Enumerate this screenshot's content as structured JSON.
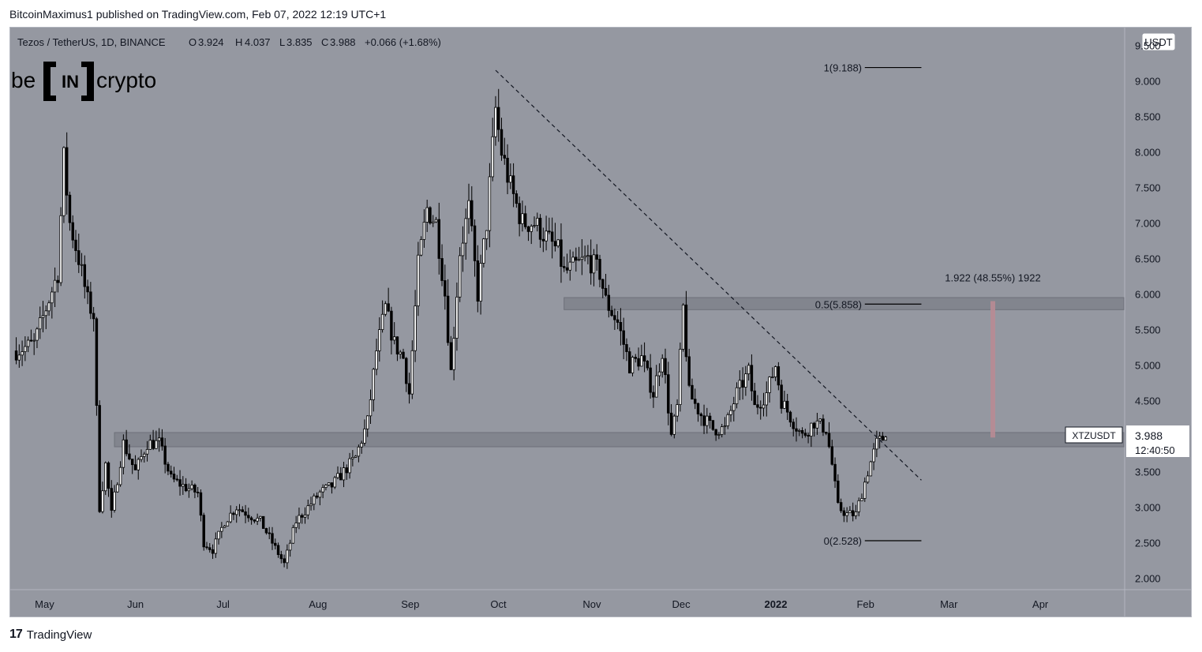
{
  "header": {
    "publisher_line": "BitcoinMaximus1 published on TradingView.com, Feb 07, 2022 12:19 UTC+1"
  },
  "footer": {
    "brand": "TradingView",
    "logo_glyph": "17"
  },
  "watermark": {
    "pre": "be",
    "mid": "IN",
    "post": "crypto"
  },
  "legend": {
    "symbol": "Tezos / TetherUS, 1D, BINANCE",
    "o_label": "O",
    "o_value": "3.924",
    "h_label": "H",
    "h_value": "4.037",
    "l_label": "L",
    "l_value": "3.835",
    "c_label": "C",
    "c_value": "3.988",
    "change": "+0.066 (+1.68%)"
  },
  "price_scale": {
    "currency": "USDT",
    "ticks": [
      "9.500",
      "9.000",
      "8.500",
      "8.000",
      "7.500",
      "7.000",
      "6.500",
      "6.000",
      "5.500",
      "5.000",
      "4.500",
      "3.500",
      "3.000",
      "2.500",
      "2.000"
    ],
    "tick_values": [
      9.5,
      9.0,
      8.5,
      8.0,
      7.5,
      7.0,
      6.5,
      6.0,
      5.5,
      5.0,
      4.5,
      3.5,
      3.0,
      2.5,
      2.0
    ],
    "last_price_label": "XTZUSDT",
    "last_price": "3.988",
    "countdown": "12:40:50"
  },
  "time_scale": {
    "labels": [
      "May",
      "Jun",
      "Jul",
      "Aug",
      "Sep",
      "Oct",
      "Nov",
      "Dec",
      "2022",
      "Feb",
      "Mar",
      "Apr"
    ],
    "label_day_index": [
      0,
      31,
      61,
      92,
      123,
      153,
      184,
      214,
      245,
      276,
      304,
      335
    ]
  },
  "fib": {
    "level_1": "1(9.188)",
    "level_05": "0.5(5.858)",
    "level_0": "0(2.528)"
  },
  "measure_label": "1.922 (48.55%) 1922",
  "colors": {
    "background": "#9598a1",
    "candle": "#000000",
    "zone": "#7c7f88",
    "measure": "#b88b93",
    "axis_text": "#131722"
  },
  "chart_data": {
    "type": "candlestick",
    "symbol": "XTZUSDT",
    "timeframe": "1D",
    "exchange": "BINANCE",
    "ylim": [
      1.85,
      9.75
    ],
    "xlim_days": [
      -8,
      366
    ],
    "x_start_date": "2021-05-01",
    "last_close": 3.988,
    "keypoints": [
      {
        "day": -6,
        "price": 5.2
      },
      {
        "day": 0,
        "price": 5.3
      },
      {
        "day": 8,
        "price": 6.3
      },
      {
        "day": 10,
        "price": 7.9
      },
      {
        "day": 12,
        "price": 7.0
      },
      {
        "day": 15,
        "price": 6.5
      },
      {
        "day": 18,
        "price": 5.9
      },
      {
        "day": 20,
        "price": 5.7
      },
      {
        "day": 22,
        "price": 3.0
      },
      {
        "day": 24,
        "price": 3.6
      },
      {
        "day": 26,
        "price": 2.9
      },
      {
        "day": 30,
        "price": 3.9
      },
      {
        "day": 34,
        "price": 3.5
      },
      {
        "day": 38,
        "price": 3.9
      },
      {
        "day": 42,
        "price": 3.9
      },
      {
        "day": 46,
        "price": 3.4
      },
      {
        "day": 50,
        "price": 3.3
      },
      {
        "day": 55,
        "price": 3.2
      },
      {
        "day": 57,
        "price": 2.5
      },
      {
        "day": 60,
        "price": 2.4
      },
      {
        "day": 64,
        "price": 2.8
      },
      {
        "day": 68,
        "price": 3.0
      },
      {
        "day": 72,
        "price": 2.9
      },
      {
        "day": 76,
        "price": 2.8
      },
      {
        "day": 80,
        "price": 2.5
      },
      {
        "day": 84,
        "price": 2.2
      },
      {
        "day": 88,
        "price": 2.8
      },
      {
        "day": 92,
        "price": 3.0
      },
      {
        "day": 96,
        "price": 3.2
      },
      {
        "day": 100,
        "price": 3.3
      },
      {
        "day": 104,
        "price": 3.5
      },
      {
        "day": 108,
        "price": 3.7
      },
      {
        "day": 112,
        "price": 4.2
      },
      {
        "day": 115,
        "price": 5.2
      },
      {
        "day": 118,
        "price": 5.8
      },
      {
        "day": 121,
        "price": 5.3
      },
      {
        "day": 124,
        "price": 5.1
      },
      {
        "day": 126,
        "price": 4.6
      },
      {
        "day": 129,
        "price": 6.4
      },
      {
        "day": 132,
        "price": 7.2
      },
      {
        "day": 135,
        "price": 7.0
      },
      {
        "day": 138,
        "price": 6.0
      },
      {
        "day": 140,
        "price": 4.9
      },
      {
        "day": 143,
        "price": 6.6
      },
      {
        "day": 146,
        "price": 7.2
      },
      {
        "day": 149,
        "price": 6.0
      },
      {
        "day": 152,
        "price": 7.0
      },
      {
        "day": 155,
        "price": 8.6
      },
      {
        "day": 157,
        "price": 8.0
      },
      {
        "day": 160,
        "price": 7.5
      },
      {
        "day": 164,
        "price": 7.0
      },
      {
        "day": 168,
        "price": 7.0
      },
      {
        "day": 172,
        "price": 6.8
      },
      {
        "day": 176,
        "price": 6.6
      },
      {
        "day": 178,
        "price": 6.3
      },
      {
        "day": 182,
        "price": 6.4
      },
      {
        "day": 186,
        "price": 6.5
      },
      {
        "day": 190,
        "price": 6.3
      },
      {
        "day": 192,
        "price": 5.9
      },
      {
        "day": 196,
        "price": 5.6
      },
      {
        "day": 200,
        "price": 5.0
      },
      {
        "day": 204,
        "price": 5.1
      },
      {
        "day": 208,
        "price": 4.6
      },
      {
        "day": 211,
        "price": 5.2
      },
      {
        "day": 214,
        "price": 4.0
      },
      {
        "day": 216,
        "price": 4.4
      },
      {
        "day": 218,
        "price": 5.8
      },
      {
        "day": 220,
        "price": 4.6
      },
      {
        "day": 224,
        "price": 4.3
      },
      {
        "day": 228,
        "price": 4.1
      },
      {
        "day": 232,
        "price": 4.1
      },
      {
        "day": 236,
        "price": 4.6
      },
      {
        "day": 240,
        "price": 4.9
      },
      {
        "day": 242,
        "price": 4.4
      },
      {
        "day": 246,
        "price": 4.6
      },
      {
        "day": 249,
        "price": 5.0
      },
      {
        "day": 251,
        "price": 4.5
      },
      {
        "day": 255,
        "price": 4.2
      },
      {
        "day": 258,
        "price": 4.0
      },
      {
        "day": 262,
        "price": 4.2
      },
      {
        "day": 266,
        "price": 4.1
      },
      {
        "day": 268,
        "price": 3.6
      },
      {
        "day": 270,
        "price": 3.0
      },
      {
        "day": 273,
        "price": 2.9
      },
      {
        "day": 276,
        "price": 2.9
      },
      {
        "day": 280,
        "price": 3.5
      },
      {
        "day": 283,
        "price": 3.9
      },
      {
        "day": 286,
        "price": 4.0
      }
    ],
    "horizontal_zones": [
      {
        "low": 3.85,
        "high": 4.05,
        "start_day": 27,
        "end_day": 366
      },
      {
        "low": 5.78,
        "high": 5.95,
        "start_day": 178,
        "end_day": 366
      }
    ],
    "descending_trendline": {
      "start": {
        "day": 155,
        "price": 9.15
      },
      "end": {
        "day": 298,
        "price": 3.38
      }
    },
    "fib_levels": [
      {
        "label": "1(9.188)",
        "price": 9.188
      },
      {
        "label": "0.5(5.858)",
        "price": 5.858
      },
      {
        "label": "0(2.528)",
        "price": 2.528
      }
    ],
    "fib_range_days": [
      267,
      298
    ],
    "measure": {
      "label": "1.922 (48.55%) 1922",
      "day": 322,
      "from": 3.98,
      "to": 5.9
    }
  }
}
